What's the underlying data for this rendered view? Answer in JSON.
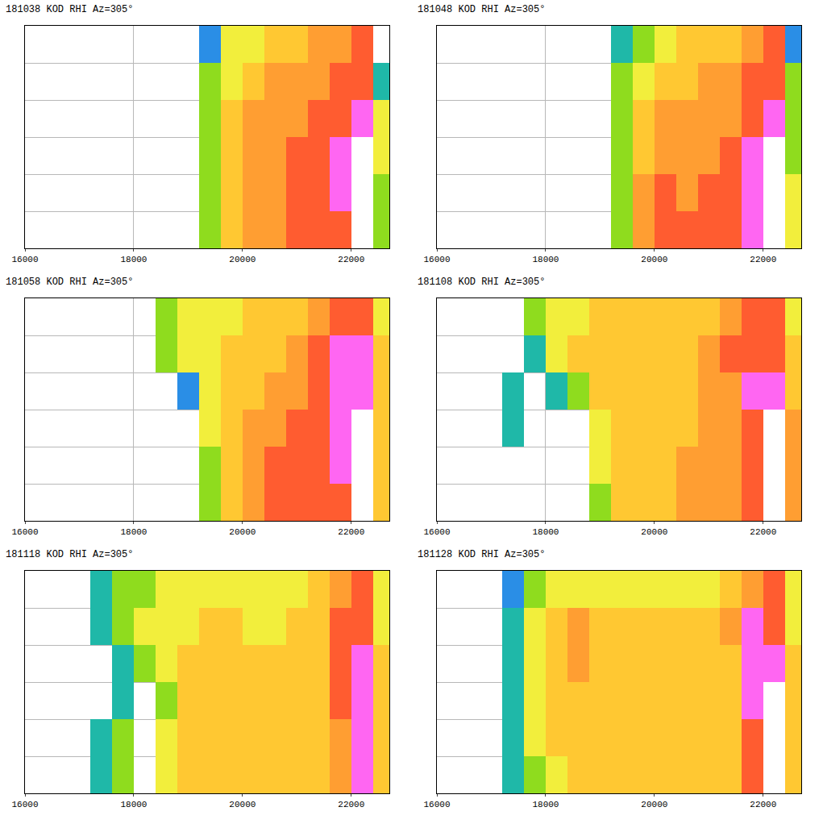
{
  "chart_data": [
    {
      "type": "heatmap",
      "title": "181038 KOD RHI Az=305°",
      "x": [
        16200,
        16600,
        17000,
        17400,
        17800,
        18200,
        18600,
        19000,
        19400,
        19800,
        20200,
        20600,
        21000,
        21400,
        21800,
        22200,
        22600
      ],
      "y": [
        0.5,
        1.5,
        2.5,
        3.5,
        4.5,
        5.5
      ],
      "z": [
        [
          null,
          null,
          null,
          null,
          null,
          null,
          null,
          null,
          20,
          30,
          35,
          35,
          40,
          40,
          40,
          50,
          20
        ],
        [
          null,
          null,
          null,
          null,
          null,
          null,
          null,
          null,
          20,
          30,
          35,
          35,
          40,
          40,
          45,
          50,
          20
        ],
        [
          null,
          null,
          null,
          null,
          null,
          null,
          null,
          null,
          20,
          30,
          35,
          35,
          40,
          40,
          45,
          50,
          25
        ],
        [
          null,
          null,
          null,
          null,
          null,
          null,
          null,
          null,
          20,
          30,
          35,
          35,
          35,
          40,
          40,
          45,
          25
        ],
        [
          null,
          null,
          null,
          null,
          null,
          null,
          null,
          null,
          20,
          25,
          30,
          35,
          35,
          35,
          40,
          40,
          15
        ],
        [
          null,
          null,
          null,
          null,
          null,
          null,
          null,
          null,
          10,
          25,
          25,
          30,
          30,
          35,
          35,
          40,
          null
        ]
      ],
      "levels": [
        10,
        15,
        20,
        25,
        30,
        35,
        40,
        45,
        50
      ],
      "colors": [
        "#2a8ee6",
        "#1fb8a8",
        "#8fdc1e",
        "#f2ee3c",
        "#ffc832",
        "#ff9e32",
        "#ff5c30",
        "#ff66f2",
        "#ffffff"
      ],
      "xlim": [
        16000,
        22700
      ],
      "xticks": [
        16000,
        18000,
        20000,
        22000
      ],
      "ylim": [
        0,
        6
      ],
      "yticks": [
        1,
        2,
        3,
        4,
        5
      ],
      "grid": true,
      "tick_labels": "x"
    },
    {
      "type": "heatmap",
      "title": "181048 KOD RHI Az=305°",
      "x": [
        16200,
        16600,
        17000,
        17400,
        17800,
        18200,
        18600,
        19000,
        19400,
        19800,
        20200,
        20600,
        21000,
        21400,
        21800,
        22200,
        22600
      ],
      "y": [
        0.5,
        1.5,
        2.5,
        3.5,
        4.5,
        5.5
      ],
      "z": [
        [
          null,
          null,
          null,
          null,
          null,
          null,
          null,
          null,
          20,
          35,
          40,
          40,
          40,
          40,
          45,
          50,
          25
        ],
        [
          null,
          null,
          null,
          null,
          null,
          null,
          null,
          null,
          20,
          35,
          40,
          35,
          40,
          40,
          45,
          50,
          25
        ],
        [
          null,
          null,
          null,
          null,
          null,
          null,
          null,
          null,
          20,
          30,
          35,
          35,
          35,
          40,
          45,
          50,
          20
        ],
        [
          null,
          null,
          null,
          null,
          null,
          null,
          null,
          null,
          20,
          30,
          35,
          35,
          35,
          35,
          40,
          45,
          20
        ],
        [
          null,
          null,
          null,
          null,
          null,
          null,
          null,
          null,
          20,
          25,
          30,
          30,
          35,
          35,
          40,
          40,
          20
        ],
        [
          null,
          null,
          null,
          null,
          null,
          null,
          null,
          null,
          15,
          20,
          25,
          30,
          30,
          30,
          35,
          40,
          10
        ]
      ],
      "levels": [
        10,
        15,
        20,
        25,
        30,
        35,
        40,
        45,
        50
      ],
      "colors": [
        "#2a8ee6",
        "#1fb8a8",
        "#8fdc1e",
        "#f2ee3c",
        "#ffc832",
        "#ff9e32",
        "#ff5c30",
        "#ff66f2",
        "#ffffff"
      ],
      "xlim": [
        16000,
        22700
      ],
      "xticks": [
        16000,
        18000,
        20000,
        22000
      ],
      "ylim": [
        0,
        6
      ],
      "yticks": [
        1,
        2,
        3,
        4,
        5
      ],
      "grid": true,
      "tick_labels": "x"
    },
    {
      "type": "heatmap",
      "title": "181058 KOD RHI Az=305°",
      "x": [
        16200,
        16600,
        17000,
        17400,
        17800,
        18200,
        18600,
        19000,
        19400,
        19800,
        20200,
        20600,
        21000,
        21400,
        21800,
        22200,
        22600
      ],
      "y": [
        0.5,
        1.5,
        2.5,
        3.5,
        4.5,
        5.5
      ],
      "z": [
        [
          null,
          null,
          null,
          null,
          null,
          null,
          null,
          null,
          20,
          30,
          35,
          40,
          40,
          40,
          40,
          50,
          30
        ],
        [
          null,
          null,
          null,
          null,
          null,
          null,
          null,
          null,
          20,
          30,
          35,
          40,
          40,
          40,
          45,
          50,
          30
        ],
        [
          null,
          null,
          null,
          null,
          null,
          null,
          null,
          null,
          25,
          30,
          35,
          35,
          40,
          40,
          45,
          50,
          30
        ],
        [
          null,
          null,
          null,
          null,
          null,
          null,
          null,
          10,
          25,
          30,
          30,
          35,
          35,
          40,
          45,
          45,
          30
        ],
        [
          null,
          null,
          null,
          null,
          null,
          null,
          20,
          25,
          25,
          30,
          30,
          30,
          35,
          40,
          45,
          45,
          30
        ],
        [
          null,
          null,
          null,
          null,
          null,
          null,
          20,
          25,
          25,
          25,
          30,
          30,
          30,
          35,
          40,
          40,
          25
        ]
      ],
      "levels": [
        10,
        15,
        20,
        25,
        30,
        35,
        40,
        45,
        50
      ],
      "colors": [
        "#2a8ee6",
        "#1fb8a8",
        "#8fdc1e",
        "#f2ee3c",
        "#ffc832",
        "#ff9e32",
        "#ff5c30",
        "#ff66f2",
        "#ffffff"
      ],
      "xlim": [
        16000,
        22700
      ],
      "xticks": [
        16000,
        18000,
        20000,
        22000
      ],
      "ylim": [
        0,
        6
      ],
      "yticks": [
        1,
        2,
        3,
        4,
        5
      ],
      "grid": true,
      "tick_labels": "x"
    },
    {
      "type": "heatmap",
      "title": "181108 KOD RHI Az=305°",
      "x": [
        16200,
        16600,
        17000,
        17400,
        17800,
        18200,
        18600,
        19000,
        19400,
        19800,
        20200,
        20600,
        21000,
        21400,
        21800,
        22200,
        22600
      ],
      "y": [
        0.5,
        1.5,
        2.5,
        3.5,
        4.5,
        5.5
      ],
      "z": [
        [
          null,
          null,
          null,
          null,
          null,
          null,
          null,
          20,
          30,
          30,
          30,
          35,
          35,
          35,
          40,
          50,
          35
        ],
        [
          null,
          null,
          null,
          null,
          null,
          null,
          null,
          25,
          30,
          30,
          30,
          35,
          35,
          35,
          40,
          50,
          35
        ],
        [
          null,
          null,
          null,
          15,
          null,
          null,
          null,
          25,
          30,
          30,
          30,
          30,
          35,
          35,
          40,
          50,
          35
        ],
        [
          null,
          null,
          null,
          15,
          null,
          15,
          20,
          30,
          30,
          30,
          30,
          30,
          35,
          35,
          45,
          45,
          30
        ],
        [
          null,
          null,
          null,
          null,
          15,
          25,
          30,
          30,
          30,
          30,
          30,
          30,
          35,
          40,
          40,
          40,
          30
        ],
        [
          null,
          null,
          null,
          null,
          20,
          25,
          25,
          30,
          30,
          30,
          30,
          30,
          30,
          35,
          40,
          40,
          25
        ]
      ],
      "levels": [
        10,
        15,
        20,
        25,
        30,
        35,
        40,
        45,
        50
      ],
      "colors": [
        "#2a8ee6",
        "#1fb8a8",
        "#8fdc1e",
        "#f2ee3c",
        "#ffc832",
        "#ff9e32",
        "#ff5c30",
        "#ff66f2",
        "#ffffff"
      ],
      "xlim": [
        16000,
        22700
      ],
      "xticks": [
        16000,
        18000,
        20000,
        22000
      ],
      "ylim": [
        0,
        6
      ],
      "yticks": [
        1,
        2,
        3,
        4,
        5
      ],
      "grid": true,
      "tick_labels": "x"
    },
    {
      "type": "heatmap",
      "title": "181118 KOD RHI Az=305°",
      "x": [
        16200,
        16600,
        17000,
        17400,
        17800,
        18200,
        18600,
        19000,
        19400,
        19800,
        20200,
        20600,
        21000,
        21400,
        21800,
        22200,
        22600
      ],
      "y": [
        0.5,
        1.5,
        2.5,
        3.5,
        4.5,
        5.5
      ],
      "z": [
        [
          null,
          null,
          null,
          15,
          20,
          null,
          25,
          30,
          30,
          30,
          30,
          30,
          30,
          30,
          35,
          45,
          30
        ],
        [
          null,
          null,
          null,
          15,
          20,
          null,
          25,
          30,
          30,
          30,
          30,
          30,
          30,
          30,
          35,
          45,
          30
        ],
        [
          null,
          null,
          null,
          null,
          15,
          null,
          20,
          30,
          30,
          30,
          30,
          30,
          30,
          30,
          40,
          45,
          30
        ],
        [
          null,
          null,
          null,
          null,
          15,
          20,
          25,
          30,
          30,
          30,
          30,
          30,
          30,
          30,
          40,
          45,
          30
        ],
        [
          null,
          null,
          null,
          15,
          20,
          25,
          25,
          25,
          30,
          30,
          25,
          25,
          30,
          30,
          40,
          40,
          25
        ],
        [
          null,
          null,
          null,
          15,
          20,
          20,
          25,
          25,
          25,
          25,
          25,
          25,
          25,
          30,
          35,
          40,
          25
        ]
      ],
      "levels": [
        10,
        15,
        20,
        25,
        30,
        35,
        40,
        45,
        50
      ],
      "colors": [
        "#2a8ee6",
        "#1fb8a8",
        "#8fdc1e",
        "#f2ee3c",
        "#ffc832",
        "#ff9e32",
        "#ff5c30",
        "#ff66f2",
        "#ffffff"
      ],
      "xlim": [
        16000,
        22700
      ],
      "xticks": [
        16000,
        18000,
        20000,
        22000
      ],
      "ylim": [
        0,
        6
      ],
      "yticks": [
        1,
        2,
        3,
        4,
        5
      ],
      "grid": true,
      "tick_labels": "x"
    },
    {
      "type": "heatmap",
      "title": "181128 KOD RHI Az=305°",
      "x": [
        16200,
        16600,
        17000,
        17400,
        17800,
        18200,
        18600,
        19000,
        19400,
        19800,
        20200,
        20600,
        21000,
        21400,
        21800,
        22200,
        22600
      ],
      "y": [
        0.5,
        1.5,
        2.5,
        3.5,
        4.5,
        5.5
      ],
      "z": [
        [
          null,
          null,
          null,
          15,
          20,
          25,
          30,
          30,
          30,
          30,
          30,
          30,
          30,
          30,
          40,
          50,
          30
        ],
        [
          null,
          null,
          null,
          15,
          25,
          30,
          30,
          30,
          30,
          30,
          30,
          30,
          30,
          30,
          40,
          50,
          30
        ],
        [
          null,
          null,
          null,
          15,
          25,
          30,
          30,
          30,
          30,
          30,
          30,
          30,
          30,
          30,
          45,
          50,
          30
        ],
        [
          null,
          null,
          null,
          15,
          25,
          30,
          35,
          30,
          30,
          30,
          30,
          30,
          30,
          30,
          45,
          45,
          30
        ],
        [
          null,
          null,
          null,
          15,
          25,
          30,
          35,
          30,
          30,
          30,
          30,
          30,
          30,
          35,
          45,
          40,
          25
        ],
        [
          null,
          null,
          null,
          10,
          20,
          25,
          25,
          25,
          25,
          25,
          25,
          25,
          25,
          30,
          35,
          40,
          25
        ]
      ],
      "levels": [
        10,
        15,
        20,
        25,
        30,
        35,
        40,
        45,
        50
      ],
      "colors": [
        "#2a8ee6",
        "#1fb8a8",
        "#8fdc1e",
        "#f2ee3c",
        "#ffc832",
        "#ff9e32",
        "#ff5c30",
        "#ff66f2",
        "#ffffff"
      ],
      "xlim": [
        16000,
        22700
      ],
      "xticks": [
        16000,
        18000,
        20000,
        22000
      ],
      "ylim": [
        0,
        6
      ],
      "yticks": [
        1,
        2,
        3,
        4,
        5
      ],
      "grid": true,
      "tick_labels": "x"
    }
  ]
}
